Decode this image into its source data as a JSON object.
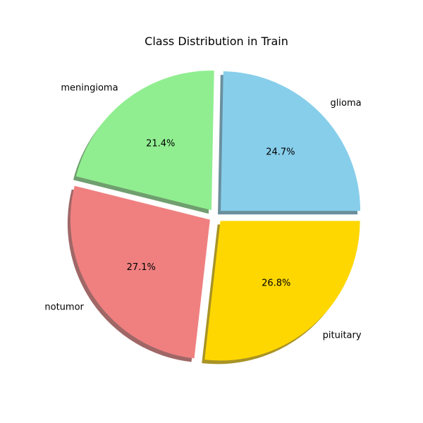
{
  "chart_data": {
    "type": "pie",
    "title": "Class Distribution in Train",
    "slices": [
      {
        "label": "glioma",
        "pct_text": "24.7%",
        "value": 24.7,
        "color": "#87CEEB"
      },
      {
        "label": "meningioma",
        "pct_text": "21.4%",
        "value": 21.4,
        "color": "#90EE90"
      },
      {
        "label": "notumor",
        "pct_text": "27.1%",
        "value": 27.1,
        "color": "#F08080"
      },
      {
        "label": "pituitary",
        "pct_text": "26.8%",
        "value": 26.8,
        "color": "#FFD700"
      }
    ],
    "exploded": true,
    "shadow": true,
    "start_angle_deg": 0,
    "direction": "counterclockwise"
  }
}
